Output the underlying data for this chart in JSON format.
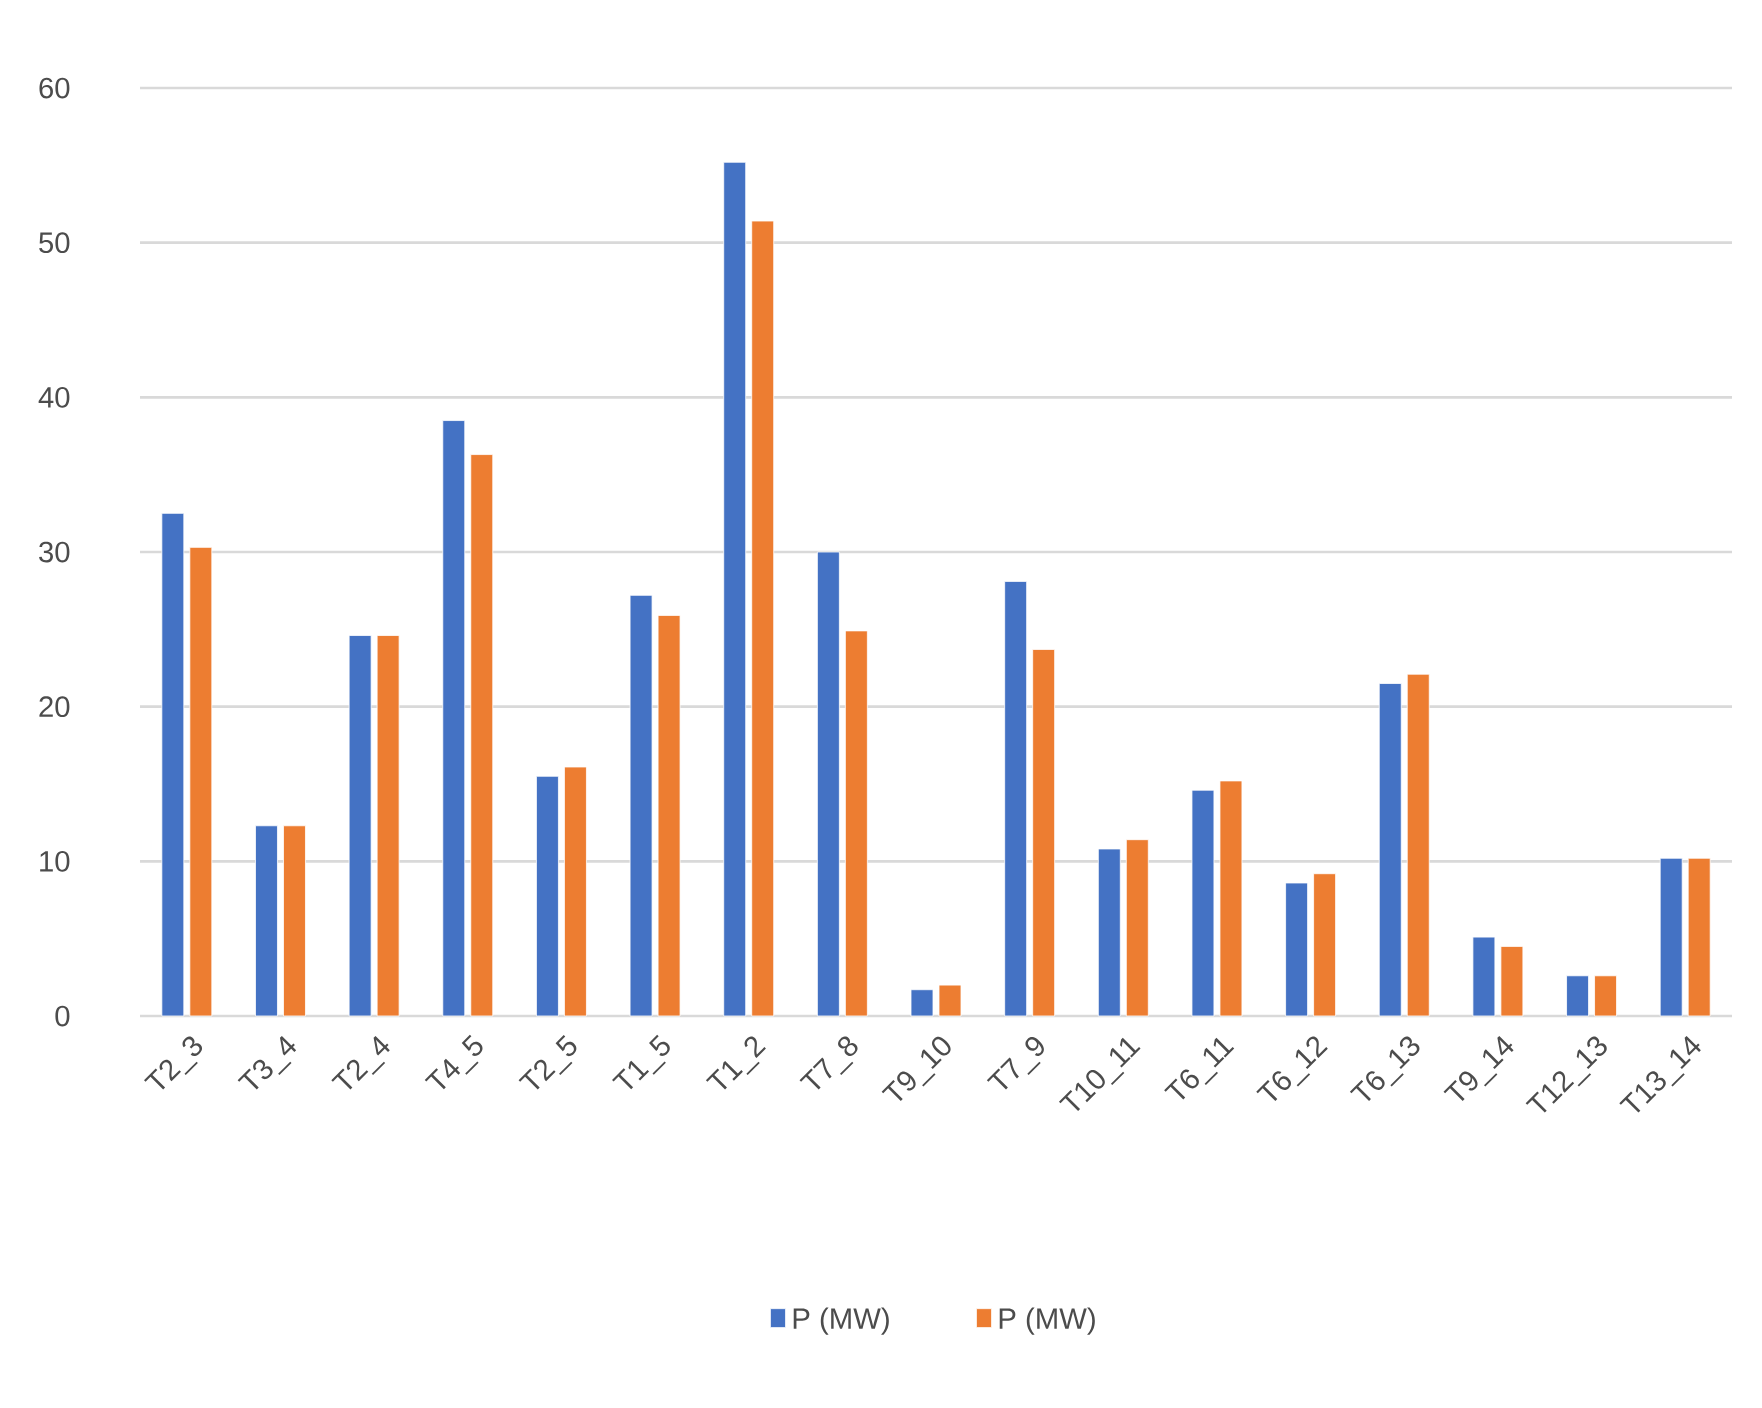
{
  "chart_data": {
    "type": "bar",
    "categories": [
      "T2_3",
      "T3_4",
      "T2_4",
      "T4_5",
      "T2_5",
      "T1_5",
      "T1_2",
      "T7_8",
      "T9_10",
      "T7_9",
      "T10_11",
      "T6_11",
      "T6_12",
      "T6_13",
      "T9_14",
      "T12_13",
      "T13_14"
    ],
    "series": [
      {
        "name": "P (MW)",
        "color": "#4472c4",
        "values": [
          32.5,
          12.3,
          24.6,
          38.5,
          15.5,
          27.2,
          55.2,
          30.0,
          1.7,
          28.1,
          10.8,
          14.6,
          8.6,
          21.5,
          5.1,
          2.6,
          10.2
        ]
      },
      {
        "name": "P (MW)",
        "color": "#ed7d31",
        "values": [
          30.3,
          12.3,
          24.6,
          36.3,
          16.1,
          25.9,
          51.4,
          24.9,
          2.0,
          23.7,
          11.4,
          15.2,
          9.2,
          22.1,
          4.5,
          2.6,
          10.2
        ]
      }
    ],
    "ylim": [
      0,
      60
    ],
    "yticks": [
      0,
      10,
      20,
      30,
      40,
      50,
      60
    ],
    "grid": "y",
    "legend": "bottom"
  }
}
